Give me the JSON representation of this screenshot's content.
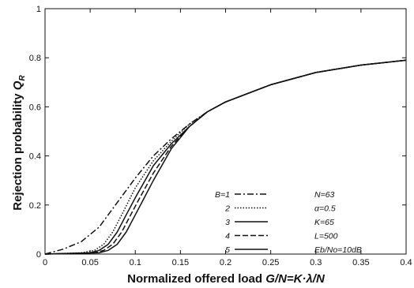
{
  "chart_data": {
    "type": "line",
    "xlabel": "Normalized offered load G/N=K·λ/N",
    "ylabel": "Rejection probability Q_R",
    "xlim": [
      0,
      0.4
    ],
    "ylim": [
      0,
      1
    ],
    "x_ticks": [
      "0",
      "0.05",
      "0.1",
      "0.15",
      "0.2",
      "0.25",
      "0.3",
      "0.35",
      "0.4"
    ],
    "y_ticks": [
      "0",
      "0.2",
      "0.4",
      "0.6",
      "0.8",
      "1"
    ],
    "grid": false,
    "legend_position": "center-right",
    "series": [
      {
        "name": "B=1",
        "dash": "8,3,2,3",
        "x": [
          0,
          0.02,
          0.04,
          0.06,
          0.08,
          0.1,
          0.12,
          0.14,
          0.16,
          0.18,
          0.2,
          0.25,
          0.3,
          0.35,
          0.4
        ],
        "y": [
          0,
          0.02,
          0.05,
          0.11,
          0.21,
          0.31,
          0.4,
          0.47,
          0.53,
          0.58,
          0.62,
          0.69,
          0.74,
          0.77,
          0.79
        ]
      },
      {
        "name": "2",
        "dash": "1.5,2",
        "x": [
          0,
          0.04,
          0.055,
          0.065,
          0.075,
          0.085,
          0.1,
          0.12,
          0.14,
          0.16,
          0.18,
          0.2,
          0.25,
          0.3,
          0.35,
          0.4
        ],
        "y": [
          0,
          0.005,
          0.015,
          0.04,
          0.09,
          0.16,
          0.27,
          0.38,
          0.46,
          0.53,
          0.58,
          0.62,
          0.69,
          0.74,
          0.77,
          0.79
        ]
      },
      {
        "name": "3",
        "dash": "",
        "x": [
          0,
          0.05,
          0.06,
          0.07,
          0.08,
          0.09,
          0.1,
          0.12,
          0.14,
          0.16,
          0.18,
          0.2,
          0.25,
          0.3,
          0.35,
          0.4
        ],
        "y": [
          0,
          0.005,
          0.015,
          0.04,
          0.09,
          0.16,
          0.23,
          0.36,
          0.45,
          0.52,
          0.58,
          0.62,
          0.69,
          0.74,
          0.77,
          0.79
        ]
      },
      {
        "name": "4",
        "dash": "7,3",
        "x": [
          0,
          0.055,
          0.065,
          0.075,
          0.085,
          0.095,
          0.105,
          0.12,
          0.14,
          0.16,
          0.18,
          0.2,
          0.25,
          0.3,
          0.35,
          0.4
        ],
        "y": [
          0,
          0.005,
          0.015,
          0.04,
          0.09,
          0.16,
          0.23,
          0.33,
          0.44,
          0.52,
          0.58,
          0.62,
          0.69,
          0.74,
          0.77,
          0.79
        ]
      },
      {
        "name": "5",
        "dash": "",
        "x": [
          0,
          0.06,
          0.07,
          0.08,
          0.09,
          0.1,
          0.11,
          0.12,
          0.14,
          0.16,
          0.18,
          0.2,
          0.25,
          0.3,
          0.35,
          0.4
        ],
        "y": [
          0,
          0.005,
          0.015,
          0.04,
          0.09,
          0.16,
          0.23,
          0.3,
          0.43,
          0.52,
          0.58,
          0.62,
          0.69,
          0.74,
          0.77,
          0.79
        ]
      }
    ],
    "legend_entries": [
      "B=1",
      "2",
      "3",
      "4",
      "5"
    ],
    "parameters": [
      "N=63",
      "α=0.5",
      "K=65",
      "L=500",
      "Eb/No=10dB"
    ]
  }
}
